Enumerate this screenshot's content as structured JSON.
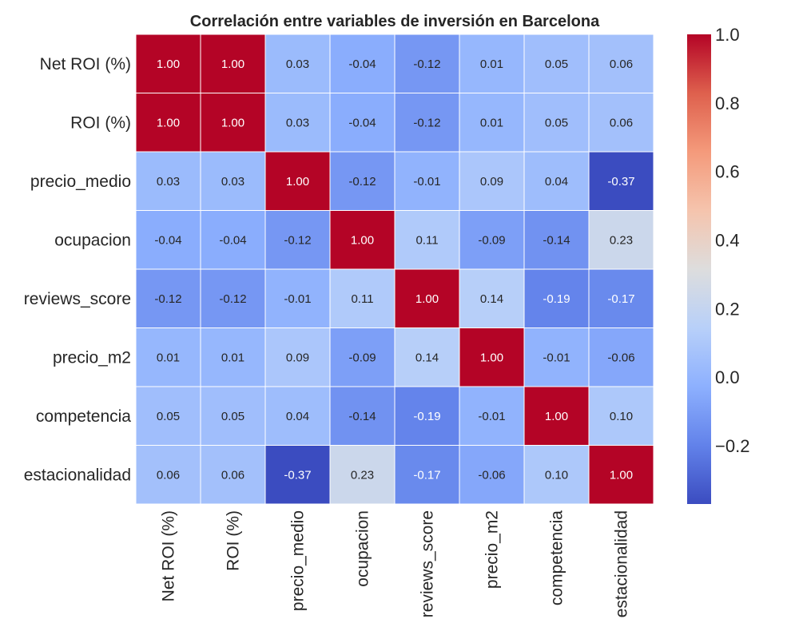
{
  "chart_data": {
    "type": "heatmap",
    "title": "Correlación entre variables de inversión en Barcelona",
    "row_labels": [
      "Net ROI (%)",
      "ROI (%)",
      "precio_medio",
      "ocupacion",
      "reviews_score",
      "precio_m2",
      "competencia",
      "estacionalidad"
    ],
    "col_labels": [
      "Net ROI (%)",
      "ROI (%)",
      "precio_medio",
      "ocupacion",
      "reviews_score",
      "precio_m2",
      "competencia",
      "estacionalidad"
    ],
    "values": [
      [
        1.0,
        1.0,
        0.03,
        -0.04,
        -0.12,
        0.01,
        0.05,
        0.06
      ],
      [
        1.0,
        1.0,
        0.03,
        -0.04,
        -0.12,
        0.01,
        0.05,
        0.06
      ],
      [
        0.03,
        0.03,
        1.0,
        -0.12,
        -0.01,
        0.09,
        0.04,
        -0.37
      ],
      [
        -0.04,
        -0.04,
        -0.12,
        1.0,
        0.11,
        -0.09,
        -0.14,
        0.23
      ],
      [
        -0.12,
        -0.12,
        -0.01,
        0.11,
        1.0,
        0.14,
        -0.19,
        -0.17
      ],
      [
        0.01,
        0.01,
        0.09,
        -0.09,
        0.14,
        1.0,
        -0.01,
        -0.06
      ],
      [
        0.05,
        0.05,
        0.04,
        -0.14,
        -0.19,
        -0.01,
        1.0,
        0.1
      ],
      [
        0.06,
        0.06,
        -0.37,
        0.23,
        -0.17,
        -0.06,
        0.1,
        1.0
      ]
    ],
    "value_format": "0.00",
    "colormap": "coolwarm",
    "vmin": -0.37,
    "vmax": 1.0,
    "colorbar_ticks": [
      1.0,
      0.8,
      0.6,
      0.4,
      0.2,
      0.0,
      -0.2
    ],
    "colorbar_tick_labels": [
      "1.0",
      "0.8",
      "0.6",
      "0.4",
      "0.2",
      "0.0",
      "−0.2"
    ],
    "grid": false
  }
}
